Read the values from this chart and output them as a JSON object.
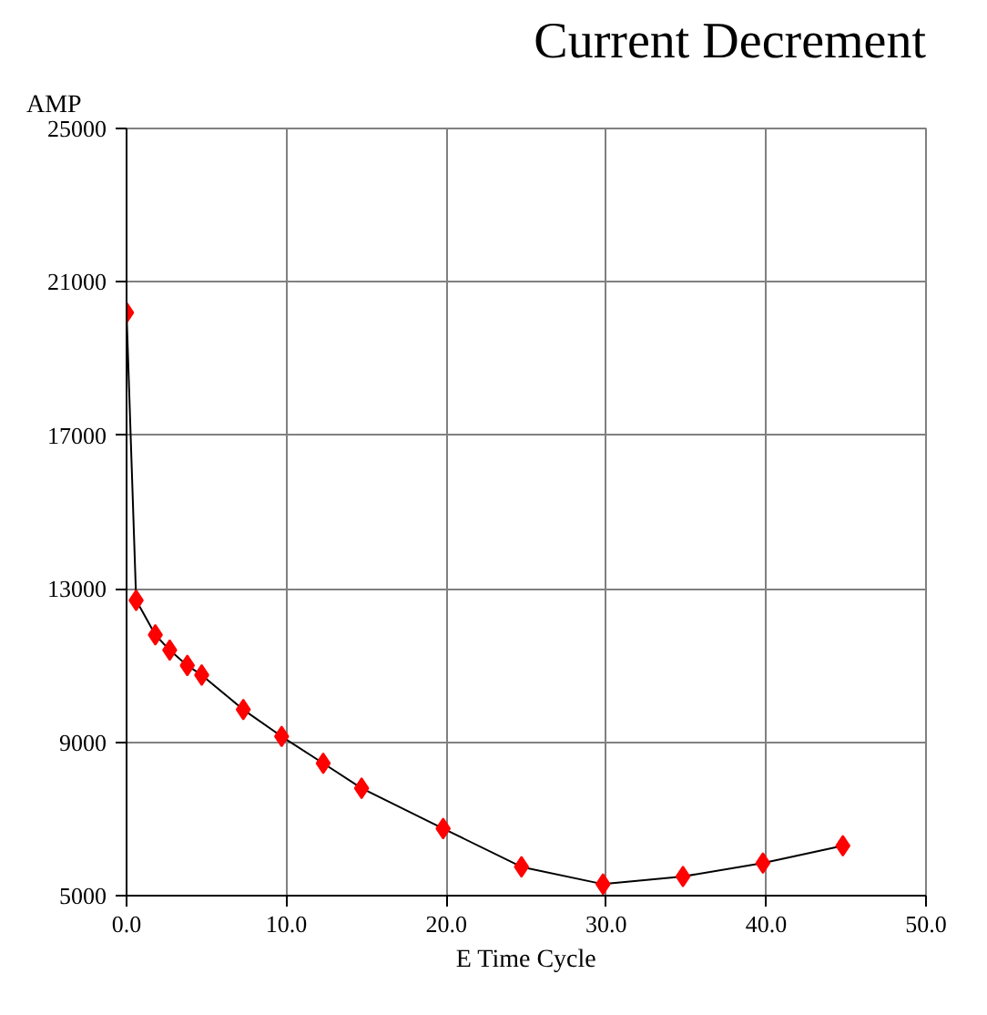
{
  "chart_data": {
    "type": "line",
    "title": "Current Decrement",
    "xlabel": "E Time Cycle",
    "ylabel": "AMP",
    "x": [
      0,
      0.6,
      1.8,
      2.7,
      3.8,
      4.7,
      7.3,
      9.7,
      12.3,
      14.7,
      19.8,
      24.7,
      29.8,
      34.8,
      39.8,
      44.8
    ],
    "series": [
      {
        "color": "#ff0000",
        "values": [
          20200,
          12700,
          11800,
          11400,
          11000,
          10750,
          9850,
          9150,
          8450,
          7800,
          6750,
          5750,
          5300,
          5500,
          5850,
          6300
        ]
      }
    ],
    "xlim": [
      0,
      50
    ],
    "ylim": [
      5000,
      25000
    ],
    "xticks": [
      {
        "value": 0,
        "label": "0.0"
      },
      {
        "value": 10,
        "label": "10.0"
      },
      {
        "value": 20,
        "label": "20.0"
      },
      {
        "value": 30,
        "label": "30.0"
      },
      {
        "value": 40,
        "label": "40.0"
      },
      {
        "value": 50,
        "label": "50.0"
      }
    ],
    "yticks": [
      5000,
      9000,
      13000,
      17000,
      21000,
      25000
    ],
    "grid": true,
    "marker": "diamond",
    "line_style": "solid"
  }
}
